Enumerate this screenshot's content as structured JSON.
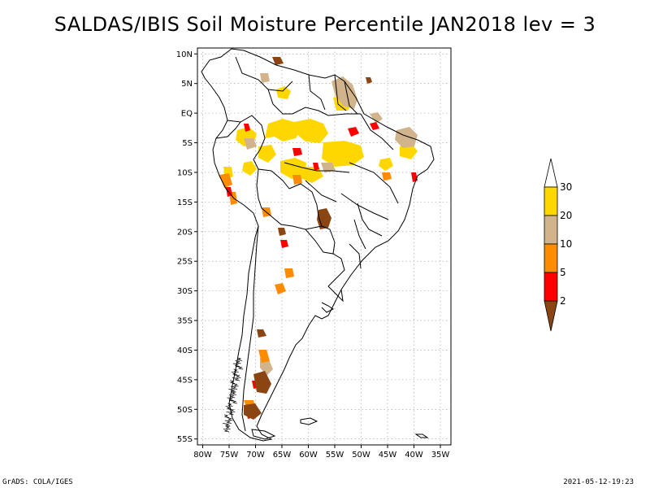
{
  "title": "SALDAS/IBIS Soil Moisture Percentile JAN2018 lev = 3",
  "map": {
    "lon_range": [
      -81,
      -33
    ],
    "lat_range": [
      -56,
      11
    ],
    "lat_ticks": [
      "10N",
      "5N",
      "EQ",
      "5S",
      "10S",
      "15S",
      "20S",
      "25S",
      "30S",
      "35S",
      "40S",
      "45S",
      "50S",
      "55S"
    ],
    "lon_ticks": [
      "80W",
      "75W",
      "70W",
      "65W",
      "60W",
      "55W",
      "50W",
      "45W",
      "40W",
      "35W"
    ],
    "grid": "dotted"
  },
  "colorbar": {
    "labels": [
      "2",
      "5",
      "10",
      "20",
      "30"
    ],
    "colors": {
      "below_2": "#8b4513",
      "2_5": "#ff0000",
      "5_10": "#ff8c00",
      "10_20": "#d2b48c",
      "20_30": "#ffd700",
      "above_30": "#ffffff"
    }
  },
  "footer": {
    "left": "GrADS: COLA/IGES",
    "right": "2021-05-12-19:23"
  }
}
